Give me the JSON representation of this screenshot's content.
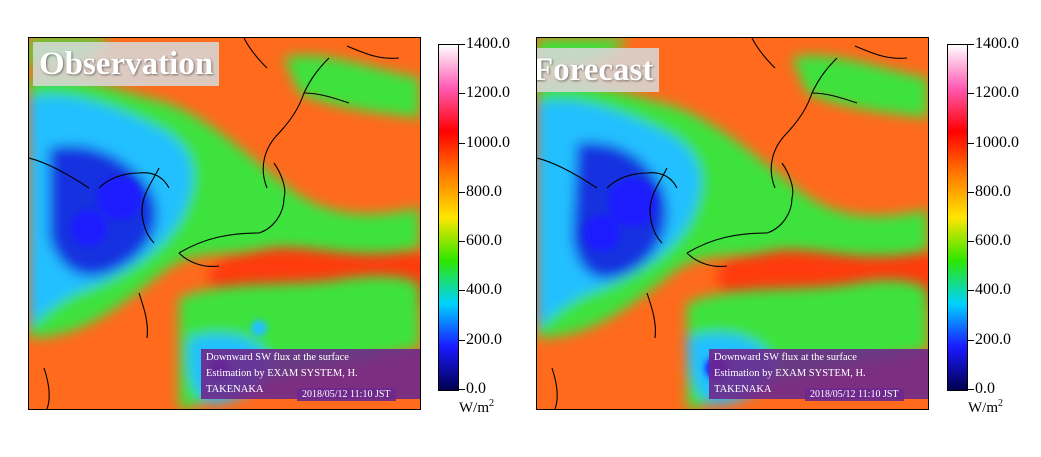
{
  "panels": [
    {
      "title": "Observation",
      "info_line1": "Downward SW flux at the surface",
      "info_line2": "Estimation by EXAM SYSTEM,  H. TAKENAKA",
      "timestamp": "2018/05/12 11:10 JST"
    },
    {
      "title": "Forecast",
      "info_line1": "Downward SW flux at the surface",
      "info_line2": "Estimation by EXAM SYSTEM,  H. TAKENAKA",
      "timestamp": "2018/05/12 11:10 JST"
    }
  ],
  "colorbar": {
    "ticks": [
      "1400.0",
      "1200.0",
      "1000.0",
      "800.0",
      "600.0",
      "400.0",
      "200.0",
      "0.0"
    ],
    "unit_base": "W/m",
    "unit_exp": "2",
    "colors": [
      "#ffffff",
      "#ff5ab4",
      "#ff0000",
      "#ff7a00",
      "#ffe600",
      "#2ee600",
      "#00d2ff",
      "#1a1aff",
      "#000050"
    ]
  },
  "colors": {
    "clear_sky": "#ff6a1c",
    "cloud_thick": "#1530e0",
    "cloud_medium": "#22c0ff",
    "cloud_thin": "#3ee23e",
    "overlay_purple": "#6e288c"
  }
}
